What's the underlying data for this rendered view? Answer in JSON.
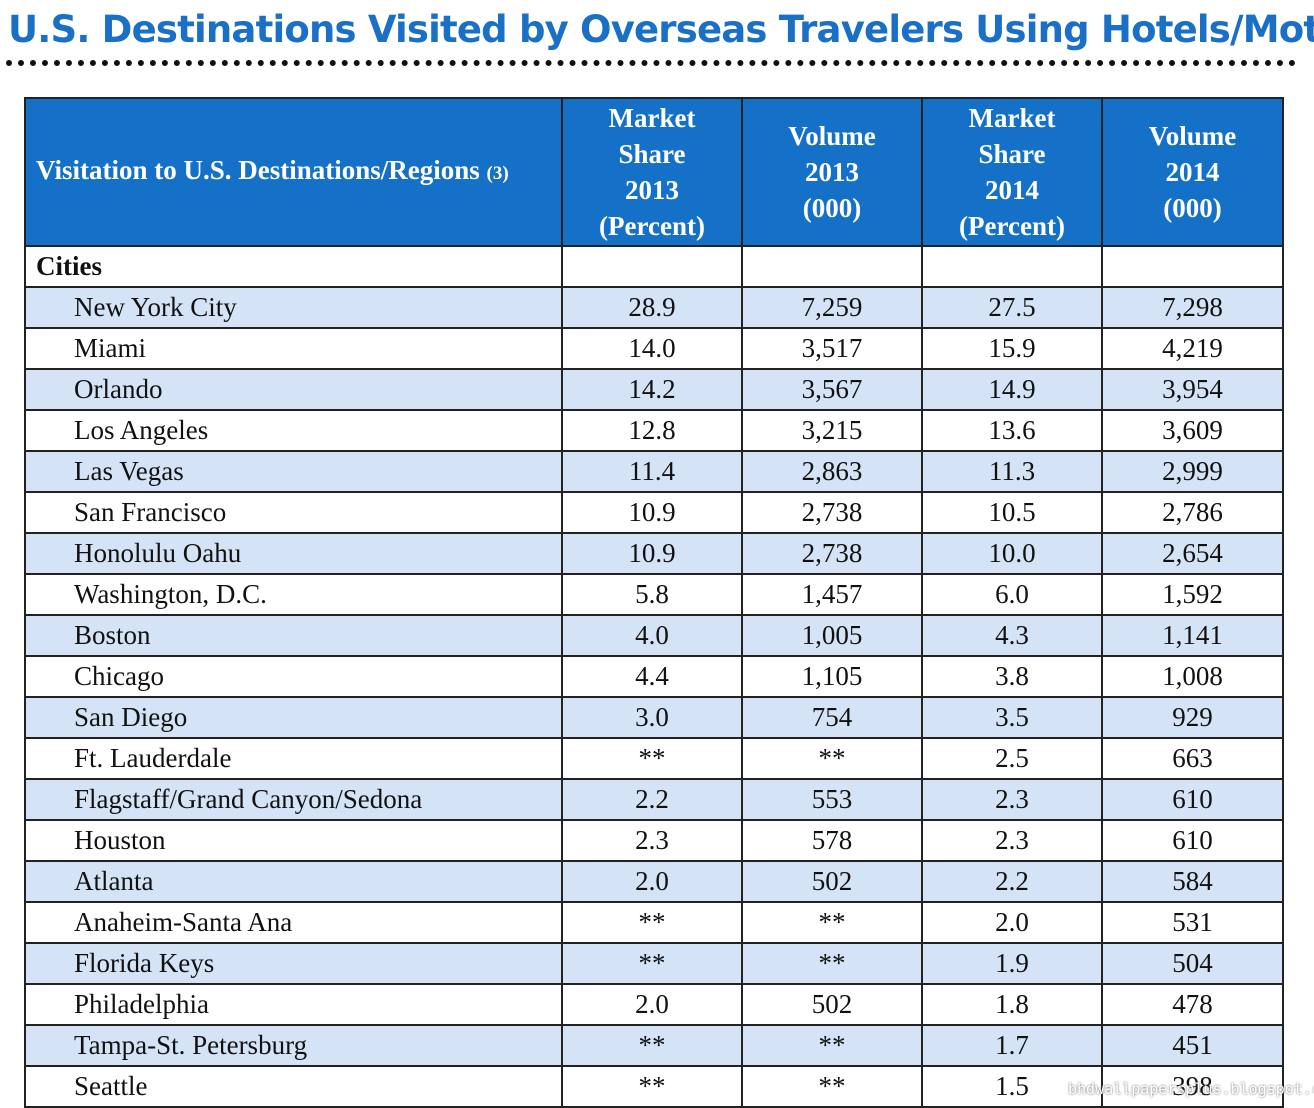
{
  "header": {
    "title": "U.S. Destinations Visited by Overseas Travelers Using Hotels/Motels"
  },
  "table": {
    "columns": [
      {
        "lines": [
          "Visitation to U.S. Destinations/Regions"
        ],
        "note": "(3)"
      },
      {
        "lines": [
          "Market",
          "Share",
          "2013",
          "(Percent)"
        ]
      },
      {
        "lines": [
          "Volume",
          "2013",
          "(000)"
        ]
      },
      {
        "lines": [
          "Market",
          "Share",
          "2014",
          "(Percent)"
        ]
      },
      {
        "lines": [
          "Volume",
          "2014",
          "(000)"
        ]
      }
    ],
    "section": "Cities",
    "rows": [
      [
        "New York City",
        "28.9",
        "7,259",
        "27.5",
        "7,298"
      ],
      [
        "Miami",
        "14.0",
        "3,517",
        "15.9",
        "4,219"
      ],
      [
        "Orlando",
        "14.2",
        "3,567",
        "14.9",
        "3,954"
      ],
      [
        "Los Angeles",
        "12.8",
        "3,215",
        "13.6",
        "3,609"
      ],
      [
        "Las Vegas",
        "11.4",
        "2,863",
        "11.3",
        "2,999"
      ],
      [
        "San Francisco",
        "10.9",
        "2,738",
        "10.5",
        "2,786"
      ],
      [
        "Honolulu Oahu",
        "10.9",
        "2,738",
        "10.0",
        "2,654"
      ],
      [
        "Washington, D.C.",
        "5.8",
        "1,457",
        "6.0",
        "1,592"
      ],
      [
        "Boston",
        "4.0",
        "1,005",
        "4.3",
        "1,141"
      ],
      [
        "Chicago",
        "4.4",
        "1,105",
        "3.8",
        "1,008"
      ],
      [
        "San Diego",
        "3.0",
        "754",
        "3.5",
        "929"
      ],
      [
        "Ft. Lauderdale",
        "**",
        "**",
        "2.5",
        "663"
      ],
      [
        "Flagstaff/Grand Canyon/Sedona",
        "2.2",
        "553",
        "2.3",
        "610"
      ],
      [
        "Houston",
        "2.3",
        "578",
        "2.3",
        "610"
      ],
      [
        "Atlanta",
        "2.0",
        "502",
        "2.2",
        "584"
      ],
      [
        "Anaheim-Santa Ana",
        "**",
        "**",
        "2.0",
        "531"
      ],
      [
        "Florida Keys",
        "**",
        "**",
        "1.9",
        "504"
      ],
      [
        "Philadelphia",
        "2.0",
        "502",
        "1.8",
        "478"
      ],
      [
        "Tampa-St. Petersburg",
        "**",
        "**",
        "1.7",
        "451"
      ],
      [
        "Seattle",
        "**",
        "**",
        "1.5",
        "398"
      ]
    ]
  },
  "watermark": "bhdwallpapersplus.blogspot.com"
}
